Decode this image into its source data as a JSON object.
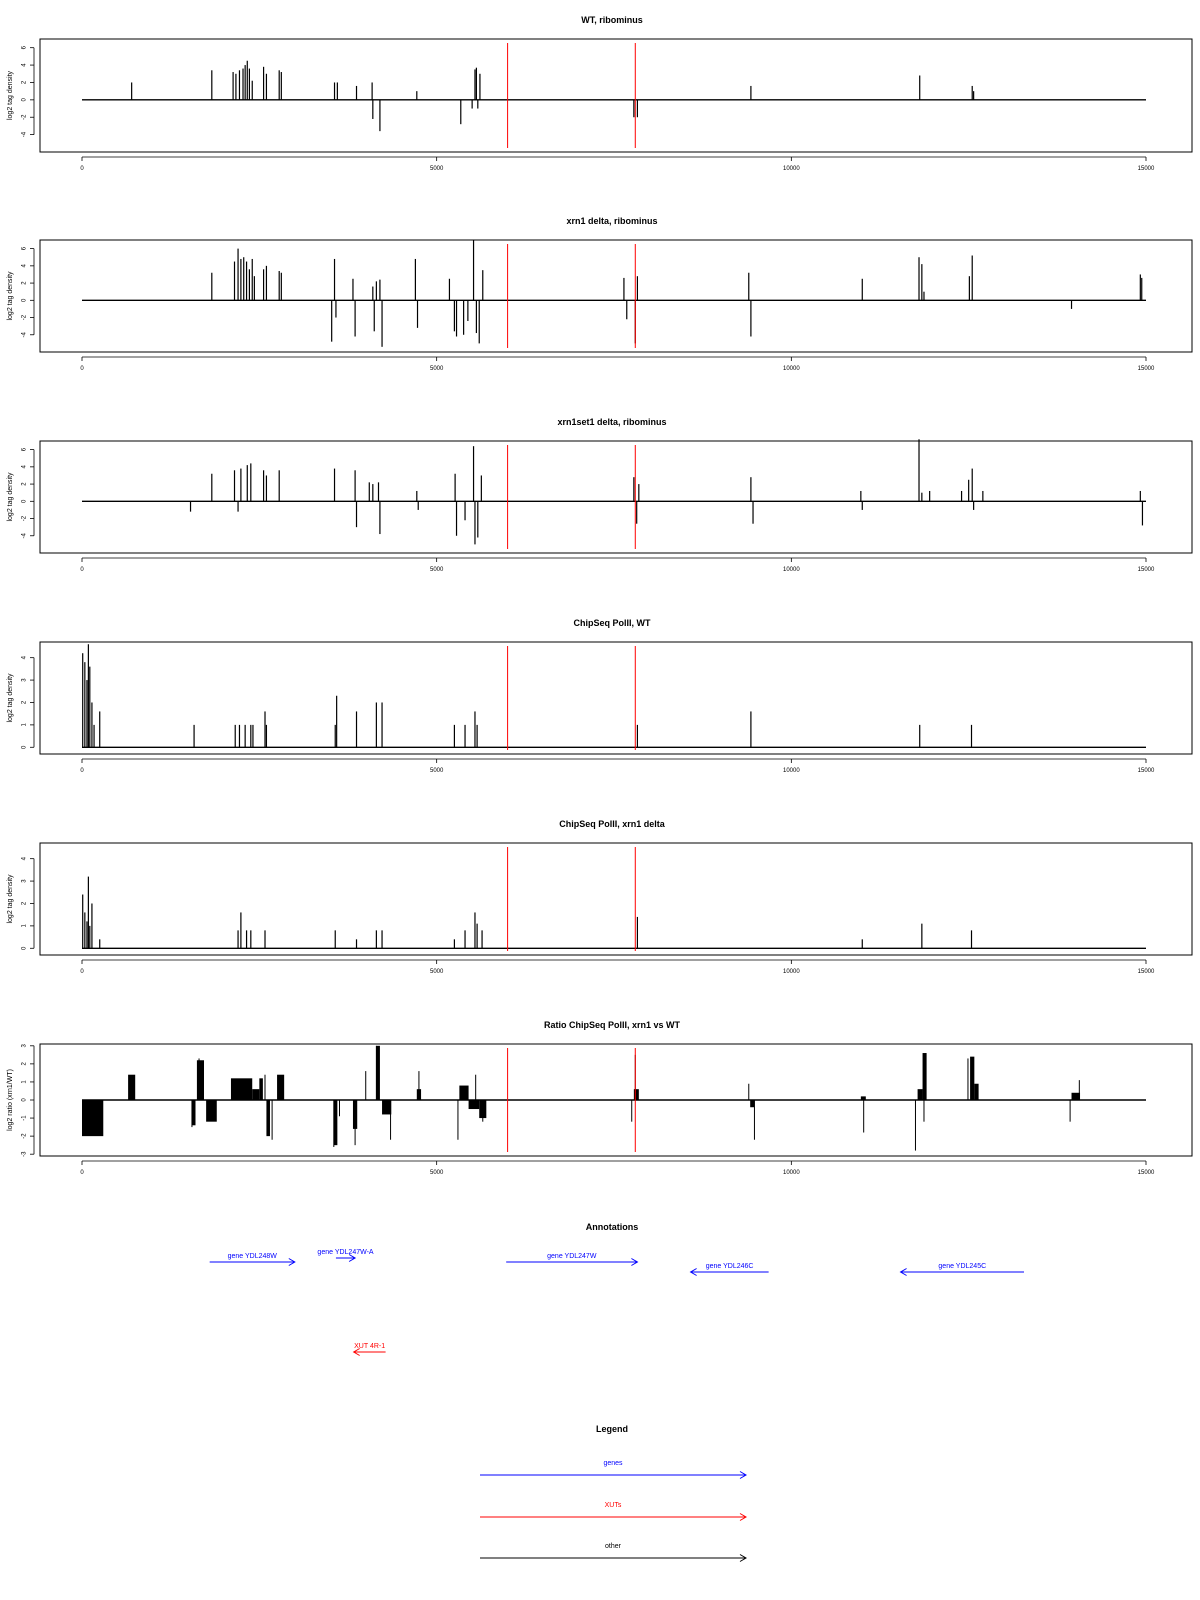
{
  "colors": {
    "genes": "#0000ff",
    "xuts": "#ff0000",
    "other": "#000000",
    "marker": "#ff0000",
    "data": "#000000"
  },
  "chart_data": [
    {
      "type": "bar",
      "title": "WT, ribominus",
      "ylabel": "log2 tag density",
      "xlim": [
        0,
        15000
      ],
      "ylim": [
        -6,
        7
      ],
      "xticks": [
        0,
        5000,
        10000,
        15000
      ],
      "yticks": [
        -4,
        -2,
        0,
        2,
        4,
        6
      ],
      "markers": [
        6000,
        7800
      ],
      "bars": [
        [
          700,
          2
        ],
        [
          1830,
          3.4
        ],
        [
          2130,
          3.2
        ],
        [
          2170,
          3
        ],
        [
          2220,
          3.4
        ],
        [
          2270,
          3.6
        ],
        [
          2300,
          4
        ],
        [
          2330,
          4.5
        ],
        [
          2360,
          3.6
        ],
        [
          2400,
          2.2
        ],
        [
          2560,
          3.8
        ],
        [
          2600,
          3
        ],
        [
          2780,
          3.4
        ],
        [
          2810,
          3.2
        ],
        [
          3560,
          2
        ],
        [
          3600,
          2
        ],
        [
          3870,
          1.6
        ],
        [
          4090,
          2
        ],
        [
          4100,
          -2.2
        ],
        [
          4200,
          -3.6
        ],
        [
          4720,
          1
        ],
        [
          5340,
          -2.8
        ],
        [
          5500,
          -1
        ],
        [
          5540,
          3.5
        ],
        [
          5560,
          3.7
        ],
        [
          5580,
          -1
        ],
        [
          5610,
          3
        ],
        [
          7780,
          -2
        ],
        [
          7830,
          -2
        ],
        [
          9430,
          1.6
        ],
        [
          11810,
          2.8
        ],
        [
          12550,
          1.6
        ],
        [
          12570,
          1
        ]
      ]
    },
    {
      "type": "bar",
      "title": "xrn1 delta, ribominus",
      "ylabel": "log2 tag density",
      "xlim": [
        0,
        15000
      ],
      "ylim": [
        -6,
        7
      ],
      "xticks": [
        0,
        5000,
        10000,
        15000
      ],
      "yticks": [
        -4,
        -2,
        0,
        2,
        4,
        6
      ],
      "markers": [
        6000,
        7800
      ],
      "bars": [
        [
          1830,
          3.2
        ],
        [
          2150,
          4.5
        ],
        [
          2200,
          6
        ],
        [
          2240,
          4.8
        ],
        [
          2280,
          5
        ],
        [
          2320,
          4.5
        ],
        [
          2360,
          3.6
        ],
        [
          2400,
          4.8
        ],
        [
          2430,
          2.8
        ],
        [
          2560,
          3.6
        ],
        [
          2600,
          4
        ],
        [
          2780,
          3.4
        ],
        [
          2810,
          3.2
        ],
        [
          3520,
          -4.8
        ],
        [
          3560,
          4.8
        ],
        [
          3580,
          -2
        ],
        [
          3820,
          2.5
        ],
        [
          3850,
          -4.2
        ],
        [
          4100,
          1.6
        ],
        [
          4120,
          -3.6
        ],
        [
          4150,
          2.2
        ],
        [
          4200,
          2.4
        ],
        [
          4230,
          -5.4
        ],
        [
          4700,
          4.8
        ],
        [
          4730,
          -3.2
        ],
        [
          5180,
          2.5
        ],
        [
          5250,
          -3.6
        ],
        [
          5280,
          -4.2
        ],
        [
          5380,
          -4
        ],
        [
          5440,
          -2.4
        ],
        [
          5520,
          7
        ],
        [
          5560,
          -3.8
        ],
        [
          5600,
          -5
        ],
        [
          5650,
          3.5
        ],
        [
          7640,
          2.6
        ],
        [
          7680,
          -2.2
        ],
        [
          7800,
          -5
        ],
        [
          7830,
          2.8
        ],
        [
          9400,
          3.2
        ],
        [
          9430,
          -4.2
        ],
        [
          11000,
          2.5
        ],
        [
          11800,
          5
        ],
        [
          11840,
          4.2
        ],
        [
          11870,
          1
        ],
        [
          12510,
          2.8
        ],
        [
          12550,
          5.2
        ],
        [
          13950,
          -1
        ],
        [
          14920,
          3
        ],
        [
          14940,
          2.6
        ]
      ]
    },
    {
      "type": "bar",
      "title": "xrn1set1 delta, ribominus",
      "ylabel": "log2 tag density",
      "xlim": [
        0,
        15000
      ],
      "ylim": [
        -6,
        7
      ],
      "xticks": [
        0,
        5000,
        10000,
        15000
      ],
      "yticks": [
        -4,
        -2,
        0,
        2,
        4,
        6
      ],
      "markers": [
        6000,
        7800
      ],
      "bars": [
        [
          1530,
          -1.2
        ],
        [
          1830,
          3.2
        ],
        [
          2150,
          3.6
        ],
        [
          2200,
          -1.2
        ],
        [
          2240,
          3.8
        ],
        [
          2330,
          4.2
        ],
        [
          2380,
          4.4
        ],
        [
          2560,
          3.6
        ],
        [
          2600,
          3
        ],
        [
          2780,
          3.6
        ],
        [
          3560,
          3.8
        ],
        [
          3850,
          3.6
        ],
        [
          3870,
          -3
        ],
        [
          4050,
          2.2
        ],
        [
          4100,
          2
        ],
        [
          4180,
          2.2
        ],
        [
          4200,
          -3.8
        ],
        [
          4720,
          1.2
        ],
        [
          4740,
          -1
        ],
        [
          5260,
          3.2
        ],
        [
          5280,
          -4
        ],
        [
          5400,
          -2.2
        ],
        [
          5520,
          6.4
        ],
        [
          5540,
          -5
        ],
        [
          5580,
          -4.2
        ],
        [
          5630,
          3
        ],
        [
          7780,
          2.8
        ],
        [
          7820,
          -2.6
        ],
        [
          7850,
          2
        ],
        [
          9430,
          2.8
        ],
        [
          9460,
          -2.6
        ],
        [
          10980,
          1.2
        ],
        [
          11000,
          -1
        ],
        [
          11800,
          7.2
        ],
        [
          11840,
          1
        ],
        [
          11950,
          1.2
        ],
        [
          12400,
          1.2
        ],
        [
          12500,
          2.5
        ],
        [
          12550,
          3.8
        ],
        [
          12570,
          -1
        ],
        [
          12700,
          1.2
        ],
        [
          14920,
          1.2
        ],
        [
          14950,
          -2.8
        ]
      ]
    },
    {
      "type": "bar",
      "title": "ChipSeq PolII, WT",
      "ylabel": "log2 tag density",
      "xlim": [
        0,
        15000
      ],
      "ylim": [
        -0.3,
        4.7
      ],
      "xticks": [
        0,
        5000,
        10000,
        15000
      ],
      "yticks": [
        0,
        1,
        2,
        3,
        4
      ],
      "markers": [
        6000,
        7800
      ],
      "bars": [
        [
          10,
          4.2
        ],
        [
          40,
          3.8
        ],
        [
          70,
          3
        ],
        [
          90,
          4.6
        ],
        [
          110,
          3.6
        ],
        [
          140,
          2
        ],
        [
          170,
          1
        ],
        [
          250,
          1.6
        ],
        [
          1580,
          1
        ],
        [
          2160,
          1
        ],
        [
          2220,
          1
        ],
        [
          2300,
          1
        ],
        [
          2380,
          1
        ],
        [
          2410,
          1
        ],
        [
          2580,
          1.6
        ],
        [
          2600,
          1
        ],
        [
          3570,
          1
        ],
        [
          3590,
          2.3
        ],
        [
          3870,
          1.6
        ],
        [
          4150,
          2
        ],
        [
          4230,
          2
        ],
        [
          5250,
          1
        ],
        [
          5400,
          1
        ],
        [
          5540,
          1.6
        ],
        [
          5570,
          1
        ],
        [
          7830,
          1
        ],
        [
          9430,
          1.6
        ],
        [
          11810,
          1
        ],
        [
          12540,
          1
        ]
      ]
    },
    {
      "type": "bar",
      "title": "ChipSeq PolII, xrn1 delta",
      "ylabel": "log2 tag density",
      "xlim": [
        0,
        15000
      ],
      "ylim": [
        -0.3,
        4.7
      ],
      "xticks": [
        0,
        5000,
        10000,
        15000
      ],
      "yticks": [
        0,
        1,
        2,
        3,
        4
      ],
      "markers": [
        6000,
        7800
      ],
      "bars": [
        [
          10,
          2.4
        ],
        [
          40,
          1.6
        ],
        [
          70,
          1.2
        ],
        [
          90,
          3.2
        ],
        [
          110,
          1
        ],
        [
          140,
          2
        ],
        [
          250,
          0.4
        ],
        [
          2200,
          0.8
        ],
        [
          2240,
          1.6
        ],
        [
          2320,
          0.8
        ],
        [
          2380,
          0.8
        ],
        [
          2580,
          0.8
        ],
        [
          3570,
          0.8
        ],
        [
          3870,
          0.4
        ],
        [
          4150,
          0.8
        ],
        [
          4230,
          0.8
        ],
        [
          5250,
          0.4
        ],
        [
          5400,
          0.8
        ],
        [
          5540,
          1.6
        ],
        [
          5570,
          1.1
        ],
        [
          5640,
          0.8
        ],
        [
          7830,
          1.4
        ],
        [
          11000,
          0.4
        ],
        [
          11840,
          1.1
        ],
        [
          12540,
          0.8
        ]
      ]
    },
    {
      "type": "area",
      "title": "Ratio ChipSeq PolII, xrn1 vs WT",
      "ylabel": "log2 ratio (xrn1/WT)",
      "xlim": [
        0,
        15000
      ],
      "ylim": [
        -3.1,
        3.1
      ],
      "xticks": [
        0,
        5000,
        10000,
        15000
      ],
      "yticks": [
        -3,
        -2,
        -1,
        0,
        1,
        2,
        3
      ],
      "markers": [
        6000,
        7800
      ],
      "segments": [
        [
          0,
          300,
          -2
        ],
        [
          650,
          750,
          1.4
        ],
        [
          1550,
          1600,
          -1.4
        ],
        [
          1620,
          1720,
          2.2
        ],
        [
          1750,
          1900,
          -1.2
        ],
        [
          2100,
          2400,
          1.2
        ],
        [
          2400,
          2500,
          0.6
        ],
        [
          2500,
          2550,
          1.2
        ],
        [
          2600,
          2650,
          -2
        ],
        [
          2750,
          2850,
          1.4
        ],
        [
          3550,
          3600,
          -2.5
        ],
        [
          3820,
          3880,
          -1.6
        ],
        [
          4150,
          4200,
          3
        ],
        [
          4230,
          4360,
          -0.8
        ],
        [
          4720,
          4780,
          0.6
        ],
        [
          5320,
          5450,
          0.8
        ],
        [
          5450,
          5600,
          -0.5
        ],
        [
          5600,
          5700,
          -1
        ],
        [
          7780,
          7850,
          0.6
        ],
        [
          9420,
          9480,
          -0.4
        ],
        [
          10980,
          11050,
          0.2
        ],
        [
          11780,
          11850,
          0.6
        ],
        [
          11850,
          11900,
          2.6
        ],
        [
          12520,
          12580,
          2.4
        ],
        [
          12580,
          12640,
          0.9
        ],
        [
          13950,
          14070,
          0.4
        ]
      ],
      "spikes": [
        [
          1550,
          -1.5
        ],
        [
          1650,
          2.3
        ],
        [
          2580,
          1.4
        ],
        [
          2680,
          -2.2
        ],
        [
          3550,
          -2.6
        ],
        [
          3630,
          -0.9
        ],
        [
          3850,
          -2.5
        ],
        [
          4000,
          1.6
        ],
        [
          4150,
          3
        ],
        [
          4350,
          -2.2
        ],
        [
          4750,
          1.6
        ],
        [
          5300,
          -2.2
        ],
        [
          5550,
          1.4
        ],
        [
          5650,
          -1.2
        ],
        [
          7800,
          2.5
        ],
        [
          7750,
          -1.2
        ],
        [
          9400,
          0.9
        ],
        [
          9480,
          -2.2
        ],
        [
          11020,
          -1.8
        ],
        [
          11750,
          -2.8
        ],
        [
          11870,
          -1.2
        ],
        [
          11900,
          2.6
        ],
        [
          12490,
          2.3
        ],
        [
          13930,
          -1.2
        ],
        [
          14060,
          1.1
        ]
      ]
    }
  ],
  "annotations": {
    "title": "Annotations",
    "items": [
      {
        "label": "gene YDL248W",
        "type": "genes",
        "from": 1800,
        "to": 3000
      },
      {
        "label": "gene YDL247W-A",
        "type": "genes",
        "from": 3580,
        "to": 3850
      },
      {
        "label": "gene YDL247W",
        "type": "genes",
        "from": 5980,
        "to": 7830
      },
      {
        "label": "gene YDL246C",
        "type": "genes",
        "from": 9680,
        "to": 8580
      },
      {
        "label": "gene YDL245C",
        "type": "genes",
        "from": 13280,
        "to": 11540
      },
      {
        "label": "XUT 4R-1",
        "type": "xuts",
        "from": 4280,
        "to": 3830
      }
    ]
  },
  "legend": {
    "title": "Legend",
    "items": [
      {
        "label": "genes",
        "type": "genes"
      },
      {
        "label": "XUTs",
        "type": "xuts"
      },
      {
        "label": "other",
        "type": "other"
      }
    ]
  }
}
